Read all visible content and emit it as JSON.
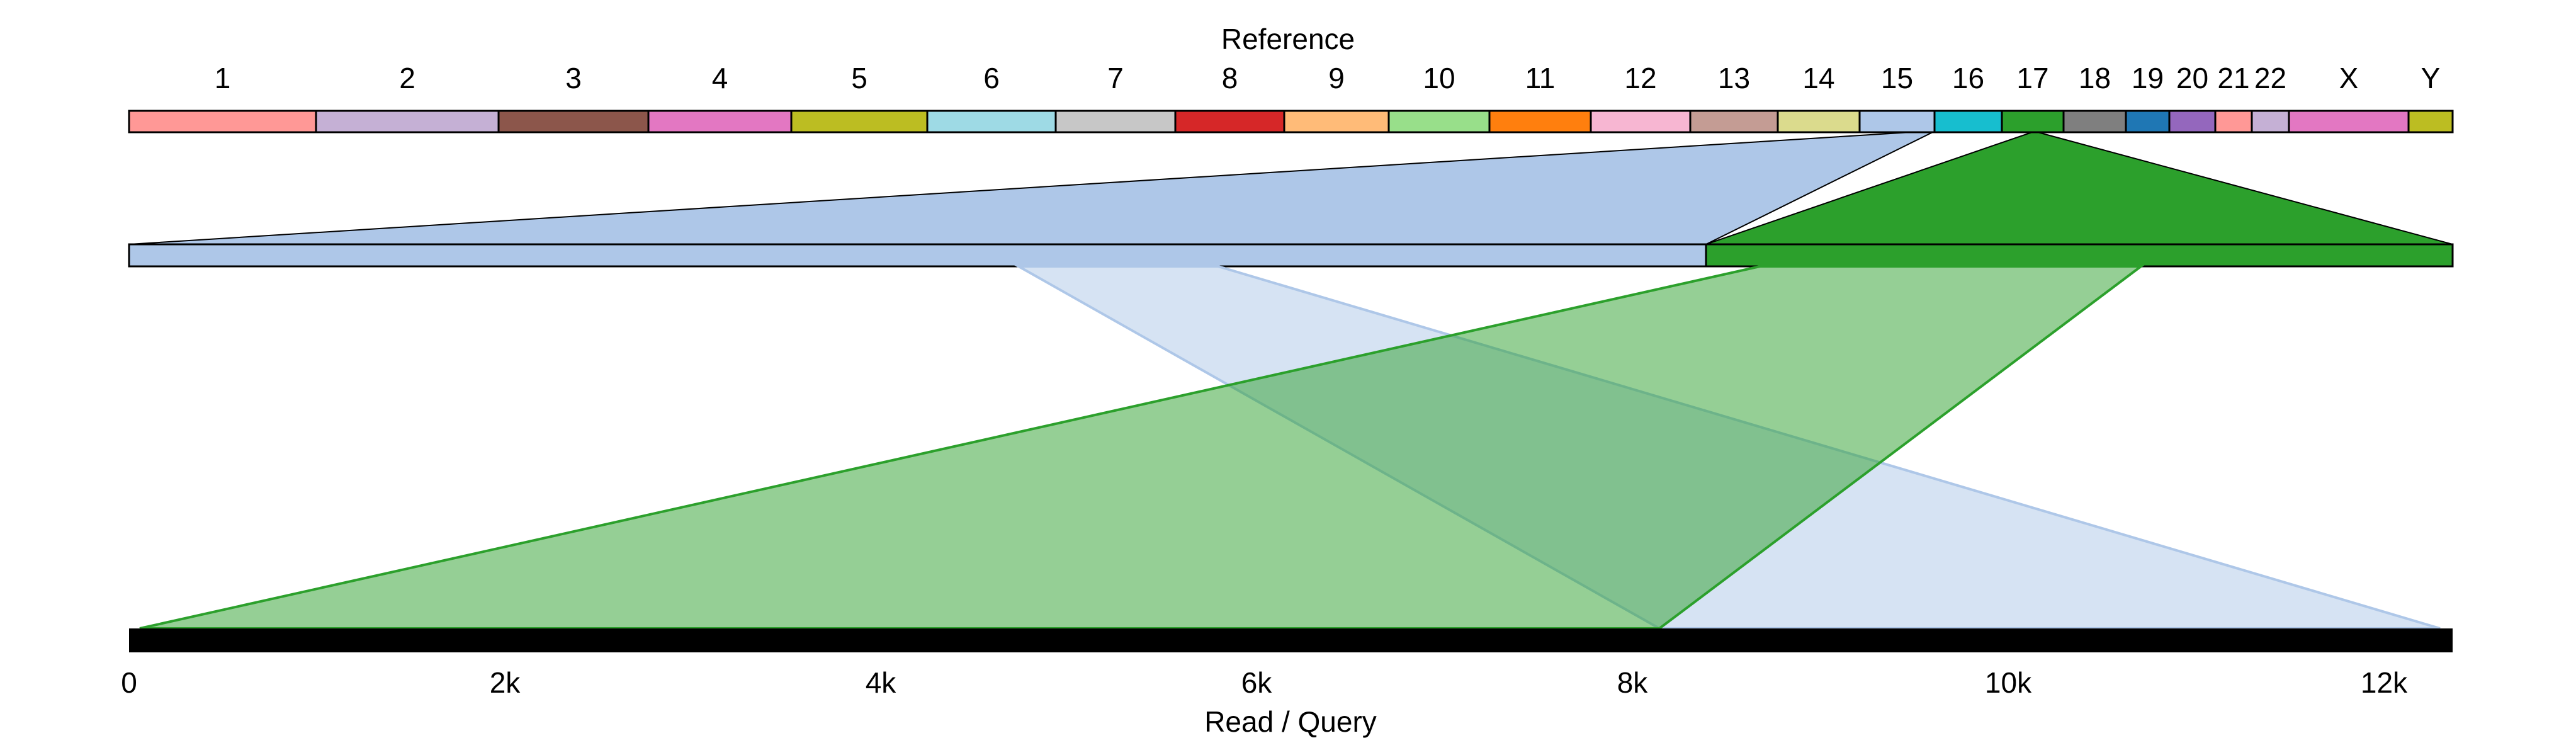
{
  "reference": {
    "title": "Reference",
    "chromosomes": [
      {
        "name": "1",
        "color": "#ff9896"
      },
      {
        "name": "2",
        "color": "#c5b0d5"
      },
      {
        "name": "3",
        "color": "#8c564b"
      },
      {
        "name": "4",
        "color": "#e377c2"
      },
      {
        "name": "5",
        "color": "#bcbd22"
      },
      {
        "name": "6",
        "color": "#9edae5"
      },
      {
        "name": "7",
        "color": "#c7c7c7"
      },
      {
        "name": "8",
        "color": "#d62728"
      },
      {
        "name": "9",
        "color": "#ffbb78"
      },
      {
        "name": "10",
        "color": "#98df8a"
      },
      {
        "name": "11",
        "color": "#ff7f0e"
      },
      {
        "name": "12",
        "color": "#f7b6d2"
      },
      {
        "name": "13",
        "color": "#c49c94"
      },
      {
        "name": "14",
        "color": "#dbdb8d"
      },
      {
        "name": "15",
        "color": "#aec7e8"
      },
      {
        "name": "16",
        "color": "#17becf"
      },
      {
        "name": "17",
        "color": "#2ca02c"
      },
      {
        "name": "18",
        "color": "#7f7f7f"
      },
      {
        "name": "19",
        "color": "#1f77b4"
      },
      {
        "name": "20",
        "color": "#9467bd"
      },
      {
        "name": "21",
        "color": "#ff9896"
      },
      {
        "name": "22",
        "color": "#c5b0d5"
      },
      {
        "name": "X",
        "color": "#e377c2"
      },
      {
        "name": "Y",
        "color": "#bcbd22"
      }
    ]
  },
  "query": {
    "axis_label": "Read / Query",
    "ticks": [
      "0",
      "2k",
      "4k",
      "6k",
      "8k",
      "10k",
      "12k"
    ]
  },
  "alignments": [
    {
      "chromosome": "15",
      "color": "#aec7e8"
    },
    {
      "chromosome": "17",
      "color": "#2ca02c"
    }
  ]
}
